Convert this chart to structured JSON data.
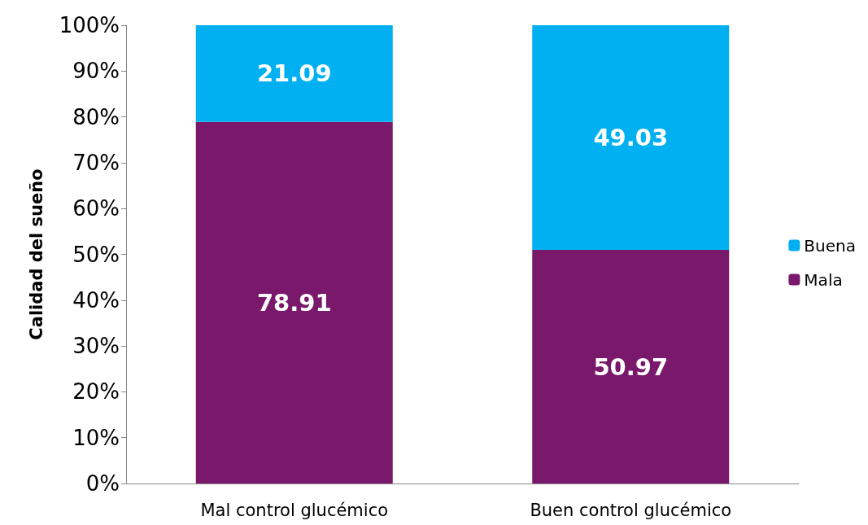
{
  "chart_data": {
    "type": "bar",
    "stacked": true,
    "ylabel": "Calidad del sueño",
    "categories": [
      "Mal control glucémico",
      "Buen control glucémico"
    ],
    "series": [
      {
        "name": "Mala",
        "color": "#7a186c",
        "values": [
          78.91,
          50.97
        ]
      },
      {
        "name": "Buena",
        "color": "#00b0f0",
        "values": [
          21.09,
          49.03
        ]
      }
    ],
    "ylim": [
      0,
      100
    ],
    "yticks": [
      {
        "value": 0,
        "label": "0%"
      },
      {
        "value": 10,
        "label": "10%"
      },
      {
        "value": 20,
        "label": "20%"
      },
      {
        "value": 30,
        "label": "30%"
      },
      {
        "value": 40,
        "label": "40%"
      },
      {
        "value": 50,
        "label": "50%"
      },
      {
        "value": 60,
        "label": "60%"
      },
      {
        "value": 70,
        "label": "70%"
      },
      {
        "value": 80,
        "label": "80%"
      },
      {
        "value": 90,
        "label": "90%"
      },
      {
        "value": 100,
        "label": "100%"
      }
    ],
    "data_labels": true,
    "grid": false,
    "legend": "right"
  }
}
